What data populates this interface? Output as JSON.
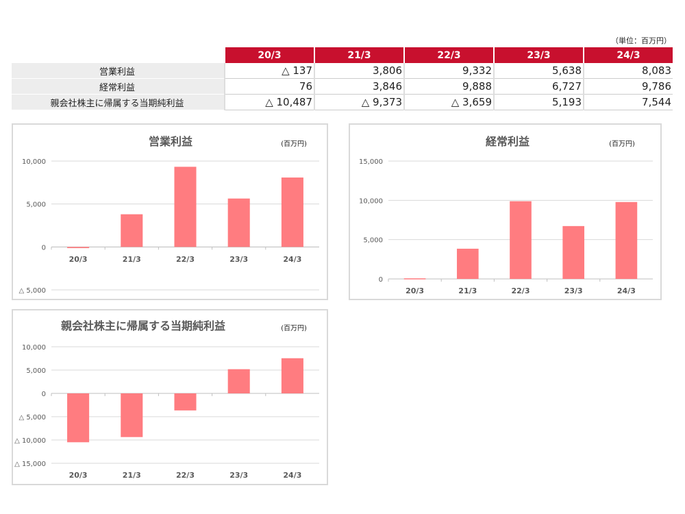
{
  "unit_note": "（単位：百万円）",
  "table": {
    "columns": [
      "20/3",
      "21/3",
      "22/3",
      "23/3",
      "24/3"
    ],
    "rows": [
      {
        "label": "営業利益",
        "values": [
          "△ 137",
          "3,806",
          "9,332",
          "5,638",
          "8,083"
        ]
      },
      {
        "label": "経常利益",
        "values": [
          "76",
          "3,846",
          "9,888",
          "6,727",
          "9,786"
        ]
      },
      {
        "label": "親会社株主に帰属する当期純利益",
        "values": [
          "△ 10,487",
          "△ 9,373",
          "△ 3,659",
          "5,193",
          "7,544"
        ]
      }
    ]
  },
  "colors": {
    "header": "#c8102e",
    "bar": "#ff7c80"
  },
  "chart_data": [
    {
      "type": "bar",
      "title": "営業利益",
      "unit": "(百万円)",
      "categories": [
        "20/3",
        "21/3",
        "22/3",
        "23/3",
        "24/3"
      ],
      "values": [
        -137,
        3806,
        9332,
        5638,
        8083
      ],
      "ylim": [
        -5000,
        10000
      ],
      "yticks": [
        10000,
        5000,
        0,
        -5000
      ],
      "ytick_labels": [
        "10,000",
        "5,000",
        "0",
        "△ 5,000"
      ],
      "grid": true
    },
    {
      "type": "bar",
      "title": "経常利益",
      "unit": "(百万円)",
      "categories": [
        "20/3",
        "21/3",
        "22/3",
        "23/3",
        "24/3"
      ],
      "values": [
        76,
        3846,
        9888,
        6727,
        9786
      ],
      "ylim": [
        0,
        15000
      ],
      "yticks": [
        15000,
        10000,
        5000,
        0
      ],
      "ytick_labels": [
        "15,000",
        "10,000",
        "5,000",
        "0"
      ],
      "grid": true
    },
    {
      "type": "bar",
      "title": "親会社株主に帰属する当期純利益",
      "unit": "(百万円)",
      "categories": [
        "20/3",
        "21/3",
        "22/3",
        "23/3",
        "24/3"
      ],
      "values": [
        -10487,
        -9373,
        -3659,
        5193,
        7544
      ],
      "ylim": [
        -15000,
        10000
      ],
      "yticks": [
        10000,
        5000,
        0,
        -5000,
        -10000,
        -15000
      ],
      "ytick_labels": [
        "10,000",
        "5,000",
        "0",
        "△ 5,000",
        "△ 10,000",
        "△ 15,000"
      ],
      "grid": true
    }
  ]
}
